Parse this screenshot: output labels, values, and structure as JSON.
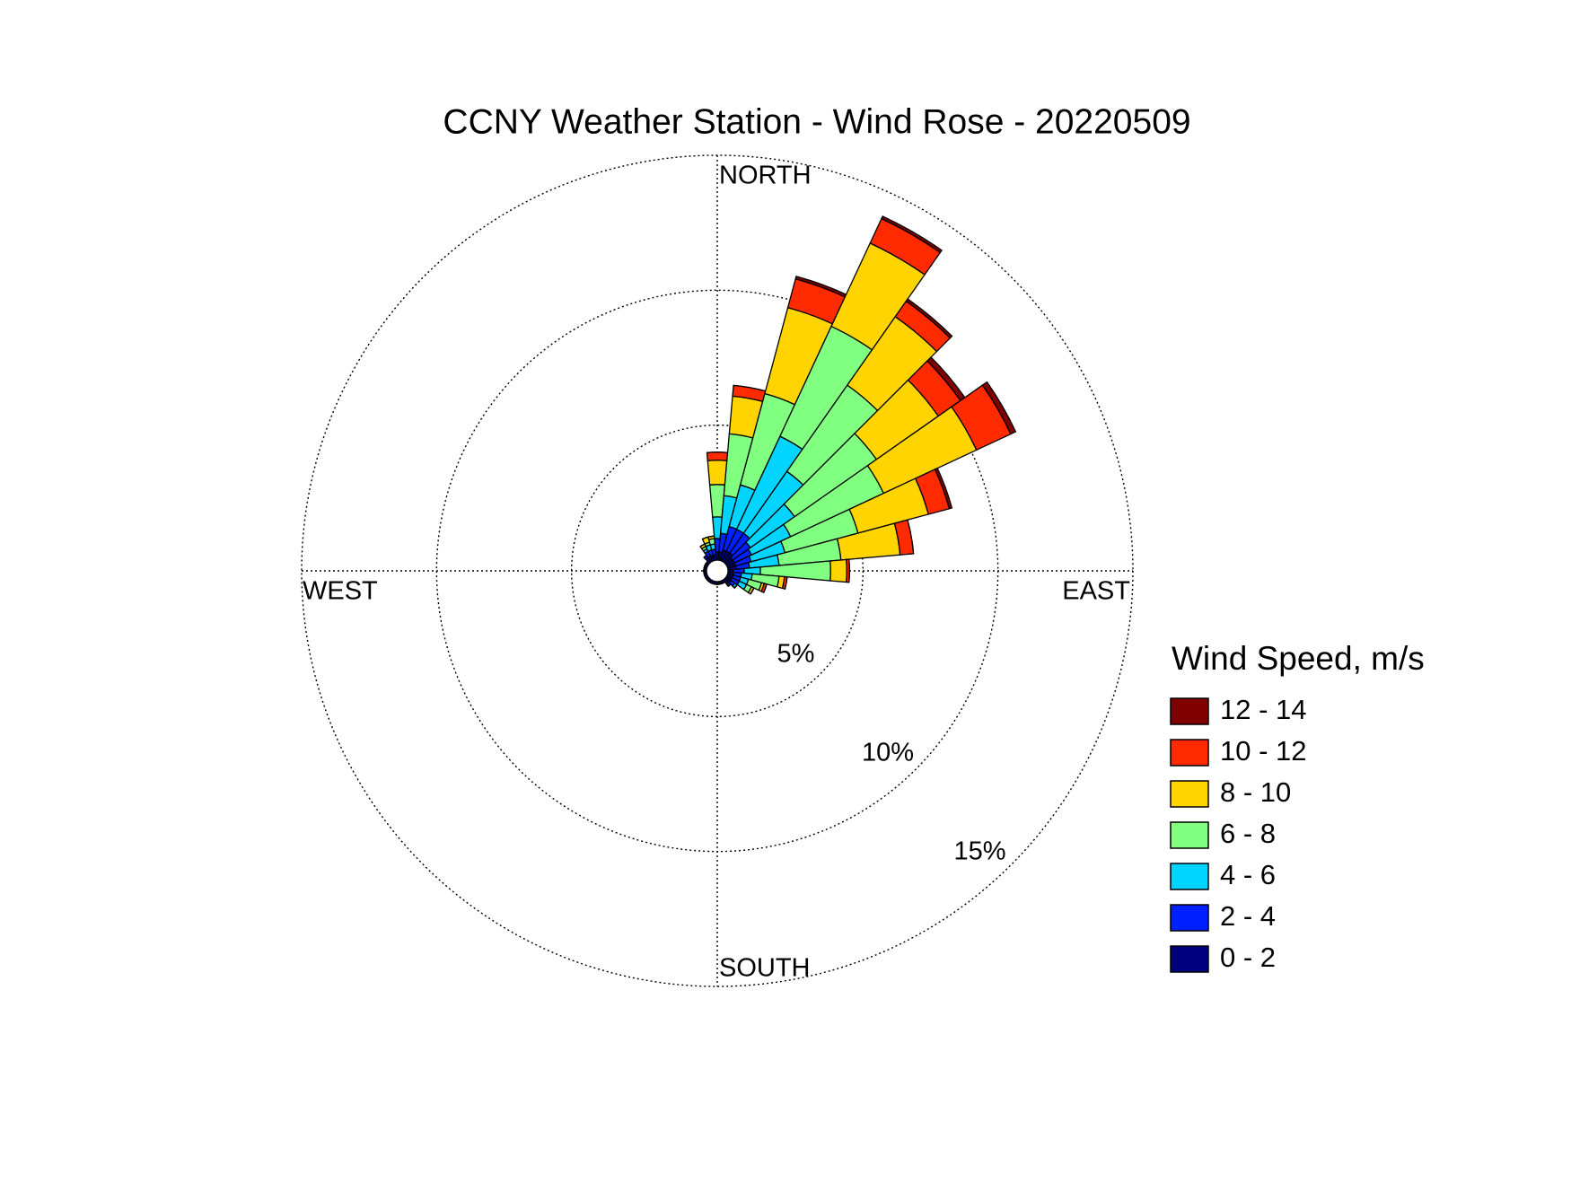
{
  "chart_data": {
    "type": "windrose",
    "title": "CCNY Weather Station - Wind Rose - 20220509",
    "direction_labels": [
      "NORTH",
      "EAST",
      "SOUTH",
      "WEST"
    ],
    "x": [
      0,
      10,
      20,
      30,
      40,
      50,
      60,
      70,
      80,
      90,
      100,
      110,
      120,
      130,
      140,
      150,
      160,
      170,
      180,
      190,
      200,
      210,
      220,
      230,
      240,
      250,
      260,
      270,
      280,
      290,
      300,
      310,
      320,
      330,
      340,
      350
    ],
    "rlim": [
      0,
      15
    ],
    "rticks": [
      {
        "value": 5,
        "label": "5%"
      },
      {
        "value": 10,
        "label": "10%"
      },
      {
        "value": 15,
        "label": "15%"
      }
    ],
    "legend_title": "Wind Speed, m/s",
    "series": [
      {
        "name": "0 - 2",
        "color": "#00007f",
        "values": [
          0.3,
          0.3,
          0.4,
          0.4,
          0.4,
          0.3,
          0.3,
          0.3,
          0.3,
          0.2,
          0.2,
          0.2,
          0.2,
          0.2,
          0.2,
          0.1,
          0.1,
          0.1,
          0.1,
          0.1,
          0.1,
          0.1,
          0.1,
          0.1,
          0.1,
          0.1,
          0.1,
          0.1,
          0.1,
          0.1,
          0.1,
          0.1,
          0.2,
          0.2,
          0.2,
          0.2
        ]
      },
      {
        "name": "2 - 4",
        "color": "#0020ff",
        "values": [
          0.5,
          0.7,
          0.9,
          0.9,
          0.9,
          0.8,
          0.7,
          0.6,
          0.5,
          0.4,
          0.3,
          0.3,
          0.3,
          0.2,
          0.1,
          0,
          0,
          0,
          0,
          0,
          0,
          0,
          0,
          0,
          0,
          0,
          0,
          0,
          0,
          0,
          0,
          0,
          0.1,
          0.2,
          0.2,
          0.2
        ]
      },
      {
        "name": "4 - 6",
        "color": "#00d4ff",
        "values": [
          0.8,
          1.4,
          1.6,
          3.8,
          2.8,
          2.0,
          1.6,
          1.3,
          1.1,
          0.6,
          0.4,
          0.3,
          0.3,
          0.1,
          0,
          0,
          0,
          0,
          0,
          0,
          0,
          0,
          0,
          0,
          0,
          0,
          0,
          0,
          0,
          0,
          0,
          0,
          0,
          0.1,
          0.2,
          0.2
        ]
      },
      {
        "name": "6 - 8",
        "color": "#80ff80",
        "values": [
          1.2,
          2.3,
          3.5,
          4.5,
          3.9,
          3.7,
          3.8,
          2.8,
          2.3,
          2.6,
          1.0,
          0.5,
          0.2,
          0,
          0,
          0,
          0,
          0,
          0,
          0,
          0,
          0,
          0,
          0,
          0,
          0,
          0,
          0,
          0,
          0,
          0,
          0,
          0,
          0.1,
          0.1,
          0.2
        ]
      },
      {
        "name": "8 - 10",
        "color": "#ffd400",
        "values": [
          0.9,
          1.4,
          3.3,
          3.4,
          3.1,
          2.8,
          3.8,
          2.7,
          2.2,
          0.6,
          0.2,
          0.1,
          0.1,
          0,
          0,
          0,
          0,
          0,
          0,
          0,
          0,
          0,
          0,
          0,
          0,
          0,
          0,
          0,
          0,
          0,
          0,
          0,
          0,
          0.1,
          0.2,
          0.1
        ]
      },
      {
        "name": "10 - 12",
        "color": "#ff2a00",
        "values": [
          0.3,
          0.4,
          1.1,
          1.0,
          0.7,
          1.0,
          1.4,
          0.8,
          0.5,
          0.1,
          0.1,
          0.1,
          0,
          0,
          0,
          0,
          0,
          0,
          0,
          0,
          0,
          0,
          0,
          0,
          0,
          0,
          0,
          0,
          0,
          0,
          0,
          0,
          0,
          0,
          0,
          0
        ]
      },
      {
        "name": "12 - 14",
        "color": "#7f0000",
        "values": [
          0,
          0,
          0.1,
          0.1,
          0.1,
          0.2,
          0.2,
          0.1,
          0,
          0,
          0,
          0,
          0,
          0,
          0,
          0,
          0,
          0,
          0,
          0,
          0,
          0,
          0,
          0,
          0,
          0,
          0,
          0,
          0,
          0,
          0,
          0,
          0,
          0,
          0,
          0
        ]
      }
    ]
  }
}
